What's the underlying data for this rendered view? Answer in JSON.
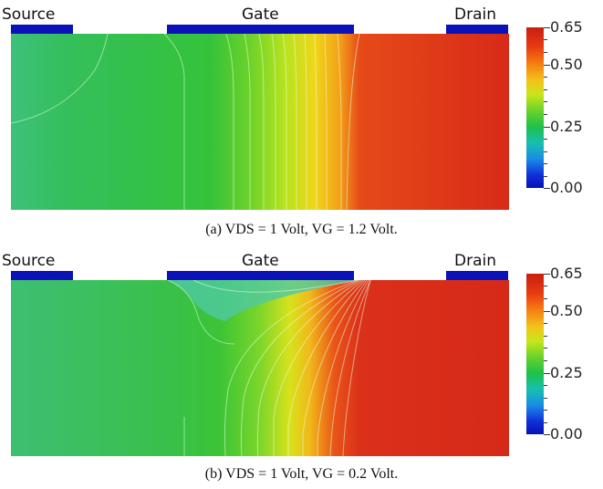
{
  "electrode_labels": {
    "source": "Source",
    "gate": "Gate",
    "drain": "Drain"
  },
  "colorbar": {
    "labels": [
      "0.65",
      "0.50",
      "0.25",
      "0.00"
    ],
    "min": 0.0,
    "max": 0.65,
    "colormap": [
      "#0610b8",
      "#1a8ce6",
      "#16c0b0",
      "#1fc04a",
      "#c8e61a",
      "#f4c21a",
      "#f57a10",
      "#c81e10"
    ]
  },
  "panels": [
    {
      "caption_prefix": "(a)",
      "caption_text": "VDS = 1 Volt, VG = 1.2 Volt."
    },
    {
      "caption_prefix": "(b)",
      "caption_text": "VDS = 1 Volt, VG = 0.2 Volt."
    }
  ],
  "colors": {
    "electrode": "#0a12b8",
    "channel_green": "#2fbf3a",
    "drain_red": "#d8321e"
  }
}
